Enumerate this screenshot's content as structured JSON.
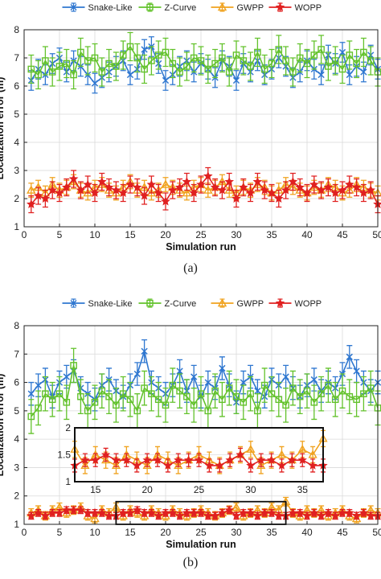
{
  "chart_data": [
    {
      "type": "line",
      "caption": "(a)",
      "xlabel": "Simulation run",
      "ylabel": "Localization error (m)",
      "xlim": [
        0,
        50
      ],
      "ylim": [
        1,
        8
      ],
      "xticks": [
        0,
        5,
        10,
        15,
        20,
        25,
        30,
        35,
        40,
        45,
        50
      ],
      "yticks": [
        1,
        2,
        3,
        4,
        5,
        6,
        7,
        8
      ],
      "grid": true,
      "legend": "top",
      "x": [
        1,
        2,
        3,
        4,
        5,
        6,
        7,
        8,
        9,
        10,
        11,
        12,
        13,
        14,
        15,
        16,
        17,
        18,
        19,
        20,
        21,
        22,
        23,
        24,
        25,
        26,
        27,
        28,
        29,
        30,
        31,
        32,
        33,
        34,
        35,
        36,
        37,
        38,
        39,
        40,
        41,
        42,
        43,
        44,
        45,
        46,
        47,
        48,
        49,
        50
      ],
      "series": [
        {
          "name": "Snake-Like",
          "color": "#2f77d0",
          "marker": "x",
          "errorbar": 0.35,
          "values": [
            6.2,
            6.6,
            6.4,
            6.8,
            7.0,
            6.5,
            6.9,
            6.7,
            6.4,
            6.1,
            6.3,
            6.5,
            6.7,
            6.9,
            6.4,
            6.6,
            7.3,
            7.4,
            6.8,
            6.2,
            6.4,
            6.7,
            6.9,
            6.5,
            6.8,
            6.6,
            6.3,
            6.9,
            6.7,
            6.2,
            6.8,
            6.5,
            6.9,
            6.4,
            6.6,
            7.0,
            6.7,
            6.3,
            6.5,
            6.9,
            6.6,
            6.4,
            7.1,
            6.8,
            7.2,
            6.4,
            6.7,
            6.5,
            7.1,
            6.6
          ]
        },
        {
          "name": "Z-Curve",
          "color": "#63c22c",
          "marker": "square",
          "errorbar": 0.5,
          "values": [
            6.6,
            6.4,
            6.9,
            6.5,
            6.7,
            6.8,
            6.4,
            7.2,
            6.9,
            7.0,
            6.5,
            6.8,
            6.7,
            7.1,
            7.4,
            7.0,
            6.6,
            6.9,
            7.1,
            7.2,
            6.8,
            6.5,
            6.7,
            7.0,
            6.9,
            6.6,
            6.8,
            7.0,
            6.5,
            7.1,
            6.9,
            6.7,
            7.2,
            6.6,
            6.8,
            7.3,
            6.9,
            6.5,
            7.0,
            6.8,
            7.1,
            7.3,
            6.7,
            6.9,
            6.6,
            7.1,
            6.8,
            7.2,
            6.9,
            6.5
          ]
        },
        {
          "name": "GWPP",
          "color": "#f0a21e",
          "marker": "triangle",
          "errorbar": 0.25,
          "values": [
            2.3,
            2.4,
            2.2,
            2.5,
            2.3,
            2.4,
            2.6,
            2.3,
            2.2,
            2.4,
            2.5,
            2.3,
            2.2,
            2.4,
            2.6,
            2.3,
            2.4,
            2.2,
            2.3,
            2.5,
            2.4,
            2.3,
            2.2,
            2.4,
            2.5,
            2.3,
            2.4,
            2.6,
            2.3,
            2.2,
            2.4,
            2.3,
            2.5,
            2.4,
            2.2,
            2.3,
            2.5,
            2.4,
            2.3,
            2.2,
            2.4,
            2.3,
            2.5,
            2.4,
            2.2,
            2.3,
            2.5,
            2.4,
            2.3,
            2.2
          ]
        },
        {
          "name": "WOPP",
          "color": "#e02020",
          "marker": "star",
          "errorbar": 0.3,
          "values": [
            1.8,
            2.1,
            2.0,
            2.3,
            2.2,
            2.4,
            2.7,
            2.3,
            2.5,
            2.2,
            2.6,
            2.4,
            2.3,
            2.2,
            2.5,
            2.4,
            2.1,
            2.5,
            2.2,
            1.9,
            2.3,
            2.4,
            2.6,
            2.2,
            2.5,
            2.8,
            2.4,
            2.3,
            2.6,
            2.0,
            2.4,
            2.2,
            2.6,
            2.3,
            2.2,
            2.0,
            2.3,
            2.6,
            2.4,
            2.2,
            2.5,
            2.3,
            2.4,
            2.2,
            2.3,
            2.5,
            2.4,
            2.2,
            2.3,
            1.8
          ]
        }
      ]
    },
    {
      "type": "line",
      "caption": "(b)",
      "xlabel": "Simulation run",
      "ylabel": "Localization error (m)",
      "xlim": [
        0,
        50
      ],
      "ylim": [
        1,
        8
      ],
      "xticks": [
        0,
        5,
        10,
        15,
        20,
        25,
        30,
        35,
        40,
        45,
        50
      ],
      "yticks": [
        1,
        2,
        3,
        4,
        5,
        6,
        7,
        8
      ],
      "grid": true,
      "legend": "top",
      "x": [
        1,
        2,
        3,
        4,
        5,
        6,
        7,
        8,
        9,
        10,
        11,
        12,
        13,
        14,
        15,
        16,
        17,
        18,
        19,
        20,
        21,
        22,
        23,
        24,
        25,
        26,
        27,
        28,
        29,
        30,
        31,
        32,
        33,
        34,
        35,
        36,
        37,
        38,
        39,
        40,
        41,
        42,
        43,
        44,
        45,
        46,
        47,
        48,
        49,
        50
      ],
      "series": [
        {
          "name": "Snake-Like",
          "color": "#2f77d0",
          "marker": "x",
          "errorbar": 0.4,
          "values": [
            5.6,
            5.9,
            6.1,
            5.5,
            6.0,
            6.2,
            6.4,
            5.8,
            5.6,
            5.4,
            5.9,
            6.1,
            5.7,
            5.5,
            5.9,
            6.3,
            7.1,
            6.0,
            5.8,
            5.6,
            5.9,
            6.4,
            5.7,
            6.2,
            5.5,
            6.0,
            5.8,
            6.5,
            5.9,
            5.3,
            6.0,
            6.2,
            5.7,
            5.5,
            6.1,
            5.9,
            6.2,
            5.8,
            5.5,
            5.9,
            6.1,
            5.7,
            6.0,
            5.8,
            6.3,
            6.9,
            6.4,
            6.0,
            5.7,
            6.0
          ]
        },
        {
          "name": "Z-Curve",
          "color": "#63c22c",
          "marker": "square",
          "errorbar": 0.6,
          "values": [
            4.8,
            5.1,
            5.6,
            5.4,
            5.6,
            5.3,
            6.6,
            5.5,
            5.0,
            5.3,
            5.7,
            5.5,
            5.2,
            5.6,
            5.4,
            5.0,
            5.8,
            5.6,
            5.4,
            5.2,
            5.9,
            5.7,
            5.5,
            5.2,
            5.6,
            5.0,
            5.7,
            5.4,
            5.8,
            5.5,
            5.3,
            5.6,
            5.0,
            5.9,
            5.6,
            5.4,
            5.2,
            5.8,
            5.5,
            5.7,
            5.3,
            5.6,
            5.9,
            5.4,
            5.7,
            5.5,
            5.4,
            5.6,
            5.8,
            5.1
          ]
        },
        {
          "name": "GWPP",
          "color": "#f0a21e",
          "marker": "triangle",
          "errorbar": 0.15,
          "values": [
            1.4,
            1.5,
            1.3,
            1.5,
            1.6,
            1.4,
            1.5,
            1.6,
            1.3,
            1.2,
            1.5,
            1.4,
            1.6,
            1.3,
            1.5,
            1.4,
            1.3,
            1.5,
            1.4,
            1.3,
            1.5,
            1.4,
            1.3,
            1.4,
            1.5,
            1.4,
            1.3,
            1.4,
            1.5,
            1.6,
            1.3,
            1.4,
            1.5,
            1.4,
            1.6,
            1.5,
            1.8,
            1.4,
            1.3,
            1.5,
            1.4,
            1.5,
            1.3,
            1.4,
            1.5,
            1.3,
            1.2,
            1.4,
            1.5,
            1.4
          ]
        },
        {
          "name": "WOPP",
          "color": "#e02020",
          "marker": "star",
          "errorbar": 0.12,
          "values": [
            1.3,
            1.4,
            1.3,
            1.4,
            1.4,
            1.5,
            1.5,
            1.5,
            1.4,
            1.4,
            1.4,
            1.3,
            1.3,
            1.4,
            1.4,
            1.5,
            1.4,
            1.4,
            1.3,
            1.4,
            1.4,
            1.3,
            1.4,
            1.4,
            1.4,
            1.3,
            1.3,
            1.4,
            1.5,
            1.3,
            1.4,
            1.4,
            1.3,
            1.4,
            1.4,
            1.3,
            1.3,
            1.4,
            1.4,
            1.3,
            1.4,
            1.3,
            1.4,
            1.3,
            1.4,
            1.4,
            1.3,
            1.4,
            1.3,
            1.3
          ]
        }
      ],
      "inset": {
        "xlim": [
          13,
          37
        ],
        "ylim": [
          1,
          2
        ],
        "xticks": [
          15,
          20,
          25,
          30,
          35
        ],
        "yticks": [
          1,
          1.5,
          2
        ],
        "ytick_labels": [
          "1",
          "1.5",
          "2"
        ]
      }
    }
  ]
}
